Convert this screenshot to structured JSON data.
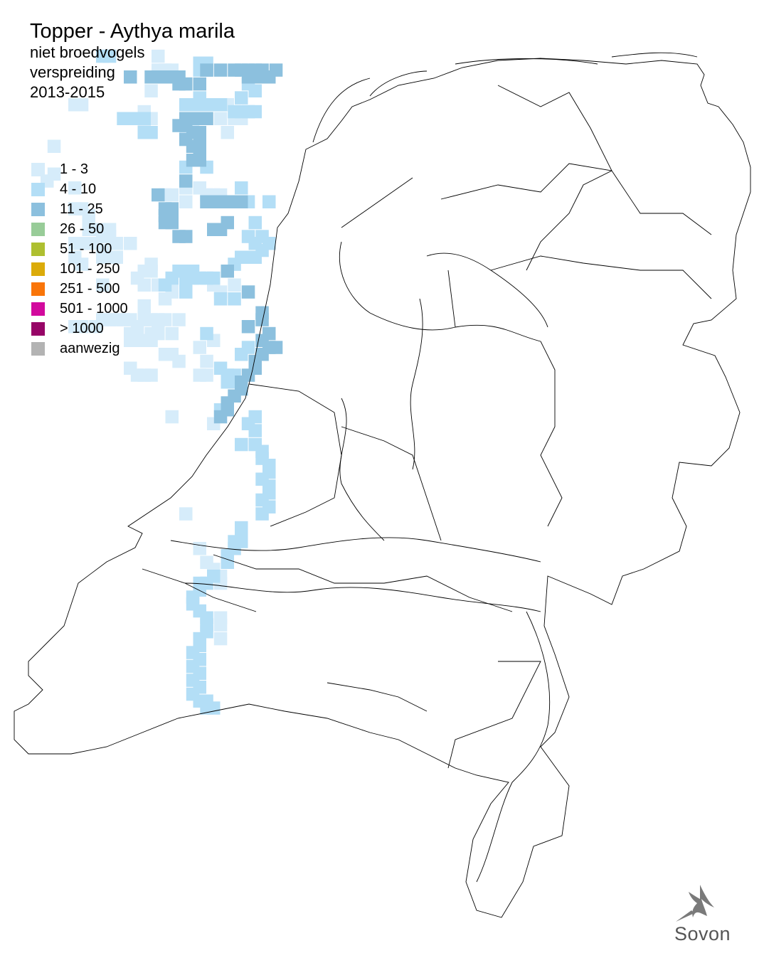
{
  "title": {
    "species": "Topper - Aythya marila",
    "category": "niet broedvogels",
    "subject": "verspreiding",
    "period": "2013-2015"
  },
  "legend": [
    {
      "label": "1 - 3",
      "color": "#d6ecfa"
    },
    {
      "label": "4 - 10",
      "color": "#b3def6"
    },
    {
      "label": "11 - 25",
      "color": "#8cc0de"
    },
    {
      "label": "26 - 50",
      "color": "#98cc98"
    },
    {
      "label": "51 - 100",
      "color": "#aebf30"
    },
    {
      "label": "101 - 250",
      "color": "#dbab0a"
    },
    {
      "label": "251 - 500",
      "color": "#f97509"
    },
    {
      "label": "501 - 1000",
      "color": "#d20a9d"
    },
    {
      "label": "> 1000",
      "color": "#970567"
    },
    {
      "label": "aanwezig",
      "color": "#b3b3b3"
    }
  ],
  "logo": {
    "text": "Sovon",
    "icon": "swallow-icon"
  },
  "grid_cells": {
    "1": [
      "U2",
      "U4",
      "V4",
      "W4",
      "T7",
      "I9",
      "J9",
      "AC9",
      "AE9",
      "S10",
      "AF10",
      "AH10",
      "R11",
      "T11",
      "Z11",
      "AD11",
      "AF11",
      "AG11",
      "S12",
      "Z12",
      "Y13",
      "AE13",
      "F15",
      "F19",
      "E20",
      "I21",
      "Y21",
      "AA21",
      "V22",
      "W22",
      "AB22",
      "AC22",
      "AD22",
      "Y23",
      "AC23",
      "AE23",
      "I24",
      "J24",
      "K25",
      "K26",
      "K27",
      "L27",
      "M27",
      "N27",
      "M28",
      "N28",
      "I29",
      "J29",
      "K29",
      "L29",
      "O29",
      "Q29",
      "M30",
      "I31",
      "M31",
      "N31",
      "O31",
      "J32",
      "T32",
      "S33",
      "T33",
      "R34",
      "M35",
      "S35",
      "U35",
      "V35",
      "W35",
      "AC35",
      "AF35",
      "W36",
      "AD36",
      "V37",
      "S38",
      "S39",
      "M40",
      "N40",
      "O40",
      "P40",
      "Q40",
      "S40",
      "T40",
      "U40",
      "V40",
      "X40",
      "I41",
      "J41",
      "L41",
      "R41",
      "U41",
      "Q42",
      "R42",
      "T42",
      "U42",
      "W42",
      "Q43",
      "R43",
      "S43",
      "T43",
      "AC43",
      "AA44",
      "V45",
      "W45",
      "X46",
      "AB46",
      "Q47",
      "R48",
      "S48",
      "T48",
      "AA48",
      "AB48",
      "W54",
      "AC55",
      "Y68",
      "AA73",
      "AB75",
      "AC76",
      "AD77",
      "AD78",
      "AD83",
      "AD84",
      "AD86"
    ],
    "4": [
      "M2",
      "N2",
      "AA3",
      "AB3",
      "AA4",
      "AB4",
      "AH6",
      "AI7",
      "AA8",
      "AG8",
      "Y9",
      "Z9",
      "AA9",
      "AB9",
      "AC9",
      "AD9",
      "AF10",
      "AG10",
      "AH10",
      "AI10",
      "P11",
      "Q11",
      "R11",
      "S11",
      "S13",
      "T13",
      "Y18",
      "AB18",
      "AG21",
      "AB23",
      "AH23",
      "AK23",
      "AI26",
      "AH28",
      "AJ28",
      "AI29",
      "AK29",
      "AJ30",
      "AI31",
      "AG31",
      "AH31",
      "AF32",
      "Y33",
      "Z33",
      "X33",
      "Y34",
      "Z34",
      "AA34",
      "AB34",
      "AC34",
      "W34",
      "V35",
      "Y35",
      "AD37",
      "AF37",
      "AB42",
      "Y36",
      "AH44",
      "AG45",
      "AD47",
      "AE48",
      "AF48",
      "AE49",
      "AF49",
      "AE52",
      "AD53",
      "AI54",
      "AH55",
      "AI56",
      "AI58",
      "AG58",
      "AJ59",
      "AJ60",
      "AK61",
      "AK62",
      "AJ63",
      "AK64",
      "AK65",
      "AJ66",
      "AK67",
      "AJ68",
      "AG70",
      "AG71",
      "AF72",
      "AG72",
      "AF73",
      "AE74",
      "AE75",
      "AC77",
      "AB78",
      "AA78",
      "AA79",
      "Z80",
      "Z81",
      "AA82",
      "AB83",
      "AB84",
      "AB85",
      "AA86",
      "AA87",
      "Z88",
      "AA89",
      "Z90",
      "AA91",
      "Z92",
      "AA93",
      "Z94",
      "AA95",
      "AB95",
      "AC96",
      "AB96"
    ],
    "11": [
      "AB4",
      "AD4",
      "AF4",
      "AG4",
      "AH4",
      "AI4",
      "AJ4",
      "AL4",
      "Q5",
      "T5",
      "U5",
      "V5",
      "W5",
      "X5",
      "AH5",
      "AI5",
      "AJ5",
      "AK5",
      "X6",
      "Y6",
      "AA6",
      "Y11",
      "Z11",
      "AA11",
      "AB11",
      "X12",
      "Y12",
      "AA13",
      "Z13",
      "Y14",
      "AA14",
      "Z15",
      "AA15",
      "AA16",
      "Z17",
      "AA17",
      "Y20",
      "U22",
      "AB23",
      "AC23",
      "AD23",
      "AE23",
      "AF23",
      "AG23",
      "V24",
      "W24",
      "V25",
      "W25",
      "V26",
      "W26",
      "AE26",
      "AC27",
      "AD27",
      "X28",
      "Y28",
      "AE33",
      "AH36",
      "AJ39",
      "AJ40",
      "AH41",
      "AK42",
      "AJ43",
      "AK44",
      "AL44",
      "AJ45",
      "AI46",
      "AI47",
      "AH48",
      "AG49",
      "AG50",
      "AF51",
      "AE52",
      "AE53",
      "AD54"
    ]
  }
}
